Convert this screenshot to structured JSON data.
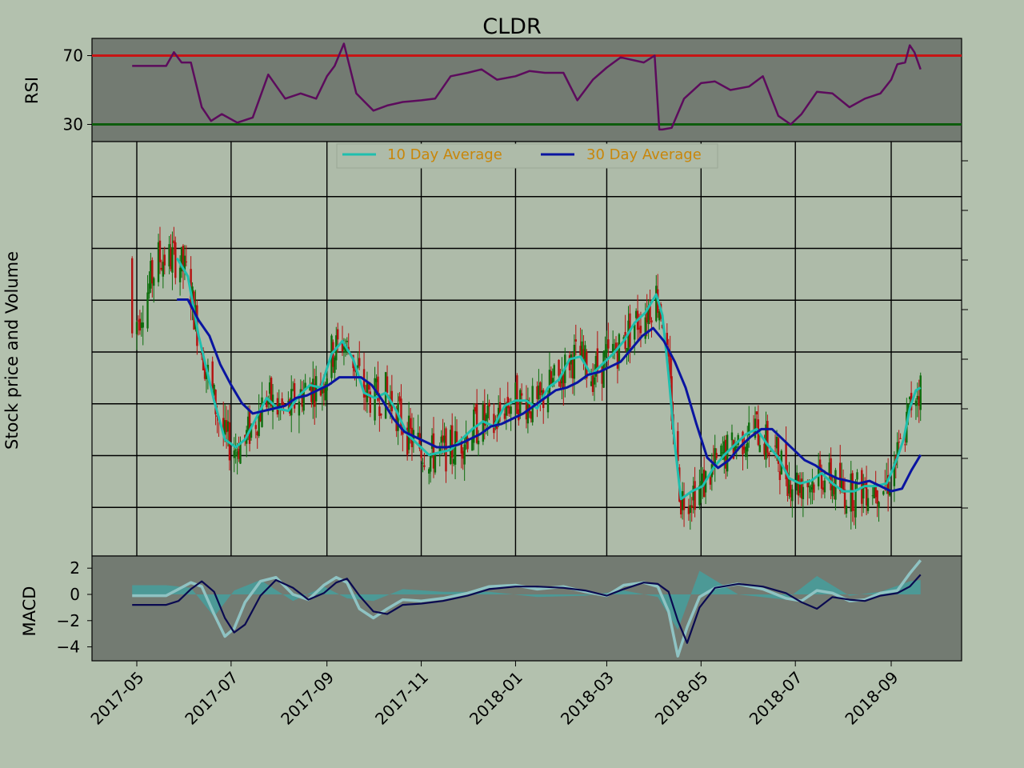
{
  "colors": {
    "figure_bg": "#b3c1ae",
    "panel_bg": "#737b72",
    "main_bg": "#aebba9",
    "rsi_line": "#5c0b5c",
    "rsi_upper": "#c81414",
    "rsi_lower": "#0d5c0d",
    "ma10": "#1fbfae",
    "ma30": "#0a14a0",
    "candle_up": "#0d6e0d",
    "candle_down": "#b51010",
    "macd_line": "#8fc3c3",
    "signal_line": "#0a0a50",
    "macd_hist": "#3fa3a3",
    "legend_text": "#c8860a"
  },
  "chart_data": [
    {
      "name": "rsi",
      "type": "line",
      "title": "CLDR",
      "ylabel": "RSI",
      "yticks": [
        30,
        70
      ],
      "ylim": [
        20,
        80
      ],
      "thresholds": [
        70,
        30
      ],
      "x": [
        "2017-04-28",
        "2017-05-10",
        "2017-05-20",
        "2017-05-25",
        "2017-05-30",
        "2017-06-05",
        "2017-06-12",
        "2017-06-18",
        "2017-06-25",
        "2017-07-05",
        "2017-07-15",
        "2017-07-25",
        "2017-08-05",
        "2017-08-15",
        "2017-08-25",
        "2017-09-01",
        "2017-09-06",
        "2017-09-12",
        "2017-09-20",
        "2017-10-01",
        "2017-10-10",
        "2017-10-20",
        "2017-11-01",
        "2017-11-10",
        "2017-11-20",
        "2017-12-01",
        "2017-12-10",
        "2017-12-20",
        "2018-01-01",
        "2018-01-10",
        "2018-01-20",
        "2018-02-01",
        "2018-02-10",
        "2018-02-20",
        "2018-03-01",
        "2018-03-10",
        "2018-03-25",
        "2018-04-01",
        "2018-04-04",
        "2018-04-06",
        "2018-04-12",
        "2018-04-20",
        "2018-05-01",
        "2018-05-10",
        "2018-05-20",
        "2018-06-01",
        "2018-06-10",
        "2018-06-20",
        "2018-06-28",
        "2018-07-05",
        "2018-07-15",
        "2018-07-25",
        "2018-08-05",
        "2018-08-15",
        "2018-08-25",
        "2018-09-01",
        "2018-09-05",
        "2018-09-10",
        "2018-09-13",
        "2018-09-16",
        "2018-09-20"
      ],
      "y": [
        64,
        64,
        64,
        72,
        66,
        66,
        40,
        32,
        36,
        31,
        34,
        59,
        45,
        48,
        45,
        58,
        64,
        77,
        48,
        38,
        41,
        43,
        44,
        45,
        58,
        60,
        62,
        56,
        58,
        61,
        60,
        60,
        44,
        56,
        63,
        69,
        66,
        70,
        27,
        27,
        28,
        45,
        54,
        55,
        50,
        52,
        58,
        35,
        30,
        36,
        49,
        48,
        40,
        45,
        48,
        56,
        65,
        66,
        76,
        72,
        62
      ]
    },
    {
      "name": "price",
      "type": "line",
      "ylabel": "Stock price and Volume",
      "legend": "top-center",
      "grid": true,
      "series": [
        {
          "name": "10 Day Average",
          "x": [
            "2017-05-27",
            "2017-06-03",
            "2017-06-10",
            "2017-06-14",
            "2017-06-20",
            "2017-06-27",
            "2017-07-04",
            "2017-07-10",
            "2017-07-17",
            "2017-07-24",
            "2017-07-31",
            "2017-08-07",
            "2017-08-14",
            "2017-08-21",
            "2017-08-28",
            "2017-09-04",
            "2017-09-11",
            "2017-09-18",
            "2017-09-25",
            "2017-10-02",
            "2017-10-09",
            "2017-10-16",
            "2017-10-23",
            "2017-10-30",
            "2017-11-06",
            "2017-11-13",
            "2017-11-20",
            "2017-11-27",
            "2017-12-04",
            "2017-12-11",
            "2017-12-18",
            "2017-12-25",
            "2018-01-01",
            "2018-01-08",
            "2018-01-15",
            "2018-01-22",
            "2018-01-29",
            "2018-02-05",
            "2018-02-12",
            "2018-02-19",
            "2018-02-26",
            "2018-03-05",
            "2018-03-12",
            "2018-03-19",
            "2018-03-26",
            "2018-04-02",
            "2018-04-06",
            "2018-04-10",
            "2018-04-14",
            "2018-04-18",
            "2018-04-25",
            "2018-05-02",
            "2018-05-09",
            "2018-05-16",
            "2018-05-23",
            "2018-05-30",
            "2018-06-06",
            "2018-06-13",
            "2018-06-20",
            "2018-06-27",
            "2018-07-04",
            "2018-07-11",
            "2018-07-18",
            "2018-07-25",
            "2018-08-01",
            "2018-08-08",
            "2018-08-15",
            "2018-08-22",
            "2018-08-29",
            "2018-09-01",
            "2018-09-05",
            "2018-09-09",
            "2018-09-13",
            "2018-09-17",
            "2018-09-20"
          ],
          "y": [
            20.0,
            19.3,
            17.0,
            16.0,
            14.5,
            13.0,
            12.7,
            13.0,
            13.8,
            14.6,
            14.2,
            14.1,
            14.7,
            15.1,
            15.0,
            16.3,
            16.8,
            16.1,
            14.8,
            14.6,
            14.8,
            14.1,
            13.2,
            12.8,
            12.4,
            12.5,
            12.6,
            13.0,
            13.4,
            13.7,
            13.5,
            14.3,
            14.5,
            14.5,
            14.2,
            15.0,
            15.3,
            16.1,
            16.2,
            15.5,
            15.9,
            16.3,
            16.8,
            17.5,
            17.9,
            18.6,
            17.8,
            15.5,
            12.8,
            10.7,
            11.0,
            11.2,
            11.9,
            12.4,
            12.8,
            13.2,
            13.4,
            12.8,
            12.3,
            11.5,
            11.3,
            11.4,
            11.7,
            11.3,
            11.0,
            11.0,
            11.2,
            11.2,
            11.3,
            11.7,
            12.3,
            13.0,
            14.2,
            14.9,
            15.0
          ]
        },
        {
          "name": "30 Day Average",
          "x": [
            "2017-05-27",
            "2017-06-03",
            "2017-06-10",
            "2017-06-17",
            "2017-06-24",
            "2017-07-01",
            "2017-07-08",
            "2017-07-15",
            "2017-07-22",
            "2017-07-29",
            "2017-08-05",
            "2017-08-12",
            "2017-08-19",
            "2017-08-26",
            "2017-09-02",
            "2017-09-09",
            "2017-09-16",
            "2017-09-23",
            "2017-09-30",
            "2017-10-07",
            "2017-10-14",
            "2017-10-21",
            "2017-10-28",
            "2017-11-04",
            "2017-11-11",
            "2017-11-18",
            "2017-11-25",
            "2017-12-02",
            "2017-12-09",
            "2017-12-16",
            "2017-12-23",
            "2017-12-30",
            "2018-01-06",
            "2018-01-13",
            "2018-01-20",
            "2018-01-27",
            "2018-02-03",
            "2018-02-10",
            "2018-02-17",
            "2018-02-24",
            "2018-03-03",
            "2018-03-10",
            "2018-03-17",
            "2018-03-24",
            "2018-03-31",
            "2018-04-07",
            "2018-04-14",
            "2018-04-21",
            "2018-04-28",
            "2018-05-05",
            "2018-05-12",
            "2018-05-19",
            "2018-05-26",
            "2018-06-02",
            "2018-06-09",
            "2018-06-16",
            "2018-06-23",
            "2018-06-30",
            "2018-07-07",
            "2018-07-14",
            "2018-07-21",
            "2018-07-28",
            "2018-08-04",
            "2018-08-11",
            "2018-08-18",
            "2018-08-25",
            "2018-09-01",
            "2018-09-08",
            "2018-09-14",
            "2018-09-20"
          ],
          "y": [
            18.4,
            18.4,
            17.6,
            17.0,
            15.9,
            15.1,
            14.4,
            14.0,
            14.1,
            14.2,
            14.3,
            14.6,
            14.7,
            14.9,
            15.1,
            15.4,
            15.4,
            15.4,
            15.1,
            14.5,
            13.8,
            13.3,
            13.1,
            12.9,
            12.7,
            12.7,
            12.8,
            13.0,
            13.2,
            13.5,
            13.6,
            13.8,
            14.0,
            14.3,
            14.6,
            14.9,
            15.0,
            15.2,
            15.5,
            15.6,
            15.8,
            16.0,
            16.5,
            17.0,
            17.3,
            16.8,
            16.0,
            15.0,
            13.6,
            12.3,
            11.9,
            12.2,
            12.7,
            13.1,
            13.4,
            13.4,
            13.0,
            12.6,
            12.2,
            12.0,
            11.7,
            11.5,
            11.4,
            11.3,
            11.4,
            11.2,
            11.0,
            11.1,
            11.8,
            12.4
          ]
        }
      ],
      "ylim": [
        8.5,
        24.5
      ],
      "candles_summary": {
        "count": 340,
        "up_color": "candle_up",
        "down_color": "candle_down"
      }
    },
    {
      "name": "macd",
      "type": "line",
      "ylabel": "MACD",
      "yticks": [
        2,
        0,
        -2,
        -4
      ],
      "ylim": [
        -5,
        3
      ],
      "xticks": [
        "2017-05",
        "2017-07",
        "2017-09",
        "2017-11",
        "2018-01",
        "2018-03",
        "2018-05",
        "2018-07",
        "2018-09"
      ],
      "xlim": [
        "2017-04-01",
        "2018-10-12"
      ],
      "series": [
        {
          "name": "MACD",
          "x": [
            "2017-04-28",
            "2017-05-10",
            "2017-05-20",
            "2017-05-28",
            "2017-06-05",
            "2017-06-12",
            "2017-06-20",
            "2017-06-27",
            "2017-07-03",
            "2017-07-10",
            "2017-07-20",
            "2017-07-30",
            "2017-08-10",
            "2017-08-20",
            "2017-08-30",
            "2017-09-07",
            "2017-09-14",
            "2017-09-22",
            "2017-10-01",
            "2017-10-10",
            "2017-10-20",
            "2017-11-01",
            "2017-11-15",
            "2017-12-01",
            "2017-12-15",
            "2018-01-01",
            "2018-01-15",
            "2018-02-01",
            "2018-02-15",
            "2018-03-01",
            "2018-03-12",
            "2018-03-25",
            "2018-04-03",
            "2018-04-10",
            "2018-04-16",
            "2018-04-22",
            "2018-04-30",
            "2018-05-10",
            "2018-05-25",
            "2018-06-10",
            "2018-06-25",
            "2018-07-05",
            "2018-07-15",
            "2018-07-25",
            "2018-08-05",
            "2018-08-15",
            "2018-08-25",
            "2018-09-05",
            "2018-09-13",
            "2018-09-20"
          ],
          "y": [
            -0.1,
            -0.1,
            -0.1,
            0.4,
            0.9,
            0.6,
            -1.5,
            -3.2,
            -2.6,
            -0.6,
            1.0,
            1.3,
            0.0,
            -0.4,
            0.7,
            1.3,
            0.9,
            -1.1,
            -1.8,
            -1.1,
            -0.4,
            -0.5,
            -0.3,
            0.1,
            0.6,
            0.7,
            0.4,
            0.6,
            0.2,
            -0.1,
            0.7,
            0.9,
            0.6,
            -1.3,
            -4.7,
            -2.5,
            -0.2,
            0.5,
            0.8,
            0.4,
            -0.3,
            -0.5,
            0.3,
            0.1,
            -0.5,
            -0.4,
            0.1,
            0.3,
            1.6,
            2.6
          ]
        },
        {
          "name": "Signal",
          "x": [
            "2017-04-28",
            "2017-05-10",
            "2017-05-20",
            "2017-05-28",
            "2017-06-05",
            "2017-06-12",
            "2017-06-20",
            "2017-06-27",
            "2017-07-03",
            "2017-07-10",
            "2017-07-20",
            "2017-07-30",
            "2017-08-10",
            "2017-08-20",
            "2017-08-30",
            "2017-09-07",
            "2017-09-14",
            "2017-09-22",
            "2017-10-01",
            "2017-10-10",
            "2017-10-20",
            "2017-11-01",
            "2017-11-15",
            "2017-12-01",
            "2017-12-15",
            "2018-01-01",
            "2018-01-15",
            "2018-02-01",
            "2018-02-15",
            "2018-03-01",
            "2018-03-12",
            "2018-03-25",
            "2018-04-03",
            "2018-04-10",
            "2018-04-16",
            "2018-04-22",
            "2018-04-30",
            "2018-05-10",
            "2018-05-25",
            "2018-06-10",
            "2018-06-25",
            "2018-07-05",
            "2018-07-15",
            "2018-07-25",
            "2018-08-05",
            "2018-08-15",
            "2018-08-25",
            "2018-09-05",
            "2018-09-13",
            "2018-09-20"
          ],
          "y": [
            -0.8,
            -0.8,
            -0.8,
            -0.5,
            0.4,
            1.0,
            0.2,
            -1.8,
            -2.9,
            -2.3,
            -0.1,
            1.1,
            0.5,
            -0.4,
            0.1,
            0.9,
            1.2,
            -0.1,
            -1.3,
            -1.5,
            -0.8,
            -0.7,
            -0.5,
            -0.1,
            0.4,
            0.6,
            0.6,
            0.5,
            0.3,
            -0.1,
            0.4,
            0.9,
            0.8,
            0.2,
            -2.0,
            -3.7,
            -1.0,
            0.5,
            0.8,
            0.6,
            0.1,
            -0.6,
            -1.1,
            -0.2,
            -0.4,
            -0.5,
            -0.1,
            0.1,
            0.6,
            1.5
          ]
        }
      ],
      "histogram": {
        "x": [
          "2017-04-28",
          "2017-05-20",
          "2017-06-05",
          "2017-06-20",
          "2017-07-03",
          "2017-07-20",
          "2017-08-10",
          "2017-08-30",
          "2017-09-14",
          "2017-10-01",
          "2017-10-20",
          "2017-11-15",
          "2017-12-15",
          "2018-01-15",
          "2018-02-15",
          "2018-03-12",
          "2018-04-03",
          "2018-04-16",
          "2018-04-30",
          "2018-05-25",
          "2018-06-25",
          "2018-07-15",
          "2018-08-05",
          "2018-08-25",
          "2018-09-13",
          "2018-09-20"
        ],
        "y": [
          0.7,
          0.7,
          0.5,
          -1.7,
          0.3,
          1.1,
          -0.5,
          0.6,
          -0.3,
          -0.5,
          0.4,
          0.2,
          0.2,
          -0.2,
          -0.1,
          0.3,
          -0.2,
          -2.7,
          1.8,
          0.0,
          -0.4,
          1.4,
          -0.1,
          0.2,
          1.0,
          1.1
        ]
      }
    }
  ]
}
